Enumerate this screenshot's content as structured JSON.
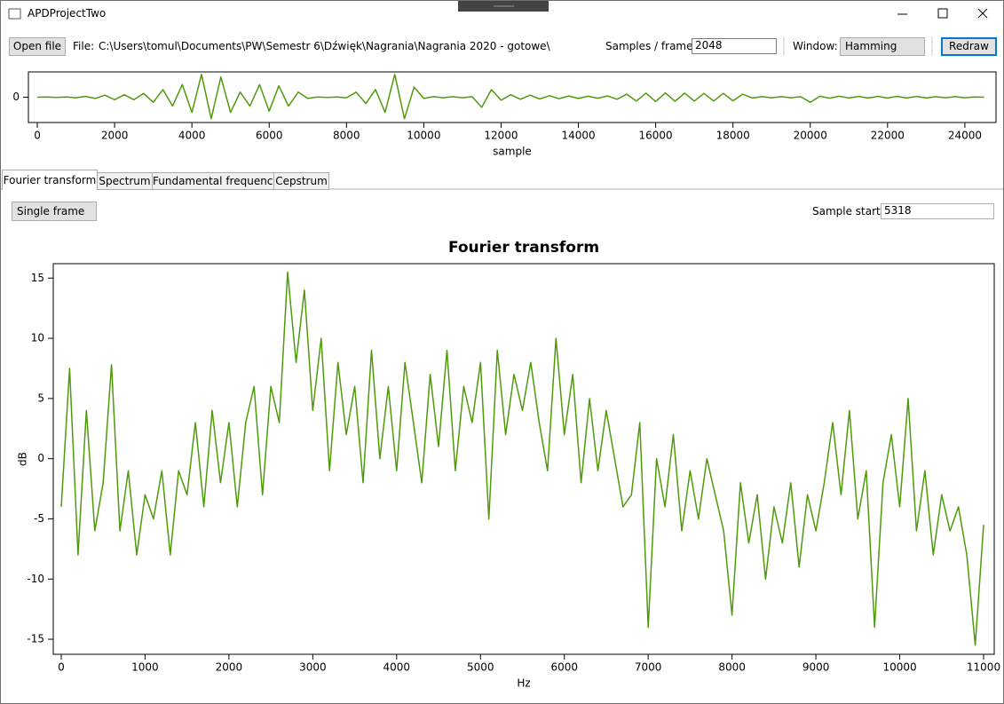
{
  "window": {
    "title": "APDProjectTwo"
  },
  "toolbar": {
    "open_file": "Open file",
    "file_label": "File:",
    "file_path": "C:\\Users\\tomul\\Documents\\PW\\Semestr 6\\Dźwięk\\Nagrania\\Nagrania 2020 - gotowe\\",
    "samples_label": "Samples / frame:",
    "samples_value": "2048",
    "window_label": "Window:",
    "window_value": "Hamming",
    "redraw": "Redraw"
  },
  "tabs": [
    "Fourier transform",
    "Spectrum",
    "Fundamental frequency",
    "Cepstrum"
  ],
  "panel": {
    "mode": "Single frame",
    "sample_start_label": "Sample start:",
    "sample_start_value": "5318"
  },
  "chart_data": [
    {
      "type": "line",
      "x_label": "sample",
      "color": "#4f9a0a",
      "x": [
        0,
        250,
        500,
        750,
        1000,
        1250,
        1500,
        1750,
        2000,
        2250,
        2500,
        2750,
        3000,
        3250,
        3500,
        3750,
        4000,
        4250,
        4500,
        4750,
        5000,
        5250,
        5500,
        5750,
        6000,
        6250,
        6500,
        6750,
        7000,
        7250,
        7500,
        7750,
        8000,
        8250,
        8500,
        8750,
        9000,
        9250,
        9500,
        9750,
        10000,
        10250,
        10500,
        10750,
        11000,
        11250,
        11500,
        11750,
        12000,
        12250,
        12500,
        12750,
        13000,
        13250,
        13500,
        13750,
        14000,
        14250,
        14500,
        14750,
        15000,
        15250,
        15500,
        15750,
        16000,
        16250,
        16500,
        16750,
        17000,
        17250,
        17500,
        17750,
        18000,
        18250,
        18500,
        18750,
        19000,
        19250,
        19500,
        19750,
        20000,
        20250,
        20500,
        20750,
        21000,
        21250,
        21500,
        21750,
        22000,
        22250,
        22500,
        22750,
        23000,
        23250,
        23500,
        23750,
        24000,
        24250,
        24500
      ],
      "values": [
        0,
        0.01,
        -0.01,
        0.01,
        -0.02,
        0.03,
        -0.05,
        0.08,
        -0.1,
        0.1,
        -0.1,
        0.15,
        -0.2,
        0.3,
        -0.35,
        0.5,
        -0.6,
        0.9,
        -0.85,
        0.8,
        -0.6,
        0.2,
        -0.35,
        0.5,
        -0.55,
        0.45,
        -0.35,
        0.2,
        -0.05,
        0.01,
        -0.01,
        0.01,
        -0.02,
        0.2,
        -0.25,
        0.3,
        -0.6,
        0.9,
        -0.85,
        0.4,
        -0.05,
        0.02,
        -0.02,
        0.02,
        -0.02,
        0.02,
        -0.4,
        0.3,
        -0.12,
        0.1,
        -0.08,
        0.08,
        -0.07,
        0.06,
        -0.06,
        0.05,
        -0.05,
        0.04,
        -0.04,
        0.05,
        -0.08,
        0.12,
        -0.15,
        0.16,
        -0.17,
        0.17,
        -0.16,
        0.16,
        -0.15,
        0.15,
        -0.15,
        0.15,
        -0.14,
        0.12,
        -0.03,
        0.02,
        -0.02,
        0.02,
        -0.02,
        0.02,
        -0.2,
        0.04,
        -0.04,
        0.04,
        -0.03,
        0.03,
        -0.03,
        0.03,
        -0.03,
        0.03,
        -0.03,
        0.03,
        -0.03,
        0.02,
        -0.02,
        0.02,
        -0.02,
        0.01,
        0
      ],
      "xlim": [
        -230,
        24806
      ],
      "xticks": [
        0,
        2000,
        4000,
        6000,
        8000,
        10000,
        12000,
        14000,
        16000,
        18000,
        20000,
        22000,
        24000
      ],
      "ylim": [
        -1,
        1
      ],
      "yticks": [
        0
      ]
    },
    {
      "type": "line",
      "title": "Fourier transform",
      "x_label": "Hz",
      "y_label": "dB",
      "color": "#4f9a0a",
      "x": [
        0,
        100,
        200,
        300,
        400,
        500,
        600,
        700,
        800,
        900,
        1000,
        1100,
        1200,
        1300,
        1400,
        1500,
        1600,
        1700,
        1800,
        1900,
        2000,
        2100,
        2200,
        2300,
        2400,
        2500,
        2600,
        2700,
        2800,
        2900,
        3000,
        3100,
        3200,
        3300,
        3400,
        3500,
        3600,
        3700,
        3800,
        3900,
        4000,
        4100,
        4200,
        4300,
        4400,
        4500,
        4600,
        4700,
        4800,
        4900,
        5000,
        5100,
        5200,
        5300,
        5400,
        5500,
        5600,
        5700,
        5800,
        5900,
        6000,
        6100,
        6200,
        6300,
        6400,
        6500,
        6600,
        6700,
        6800,
        6900,
        7000,
        7100,
        7200,
        7300,
        7400,
        7500,
        7600,
        7700,
        7800,
        7900,
        8000,
        8100,
        8200,
        8300,
        8400,
        8500,
        8600,
        8700,
        8800,
        8900,
        9000,
        9100,
        9200,
        9300,
        9400,
        9500,
        9600,
        9700,
        9800,
        9900,
        10000,
        10100,
        10200,
        10300,
        10400,
        10500,
        10600,
        10700,
        10800,
        10900,
        11000
      ],
      "values": [
        -4,
        7.5,
        -8,
        4,
        -6,
        -2,
        7.8,
        -6,
        -1,
        -8,
        -3,
        -5,
        -1,
        -8,
        -1,
        -3,
        3,
        -4,
        4,
        -2,
        3,
        -4,
        3,
        6,
        -3,
        6,
        3,
        15.5,
        8,
        14,
        4,
        10,
        -1,
        8,
        2,
        6,
        -2,
        9,
        0,
        6,
        -1,
        8,
        3,
        -2,
        7,
        1,
        9,
        -1,
        6,
        3,
        8,
        -5,
        9,
        2,
        7,
        4,
        8,
        3,
        -1,
        10,
        2,
        7,
        -2,
        5,
        -1,
        4,
        0,
        -4,
        -3,
        3,
        -14,
        0,
        -4,
        2,
        -6,
        -1,
        -5,
        0,
        -3,
        -6,
        -13,
        -2,
        -7,
        -3,
        -10,
        -4,
        -7,
        -2,
        -9,
        -3,
        -6,
        -2,
        3,
        -3,
        4,
        -5,
        -1,
        -14,
        -2,
        2,
        -4,
        5,
        -6,
        -1,
        -8,
        -3,
        -6,
        -4,
        -8,
        -15.5,
        -5.5
      ],
      "xlim": [
        -95,
        11127
      ],
      "xticks": [
        0,
        1000,
        2000,
        3000,
        4000,
        5000,
        6000,
        7000,
        8000,
        9000,
        10000,
        11000
      ],
      "ylim": [
        -16.25,
        16.2
      ],
      "yticks": [
        -15,
        -10,
        -5,
        0,
        5,
        10,
        15
      ]
    }
  ]
}
